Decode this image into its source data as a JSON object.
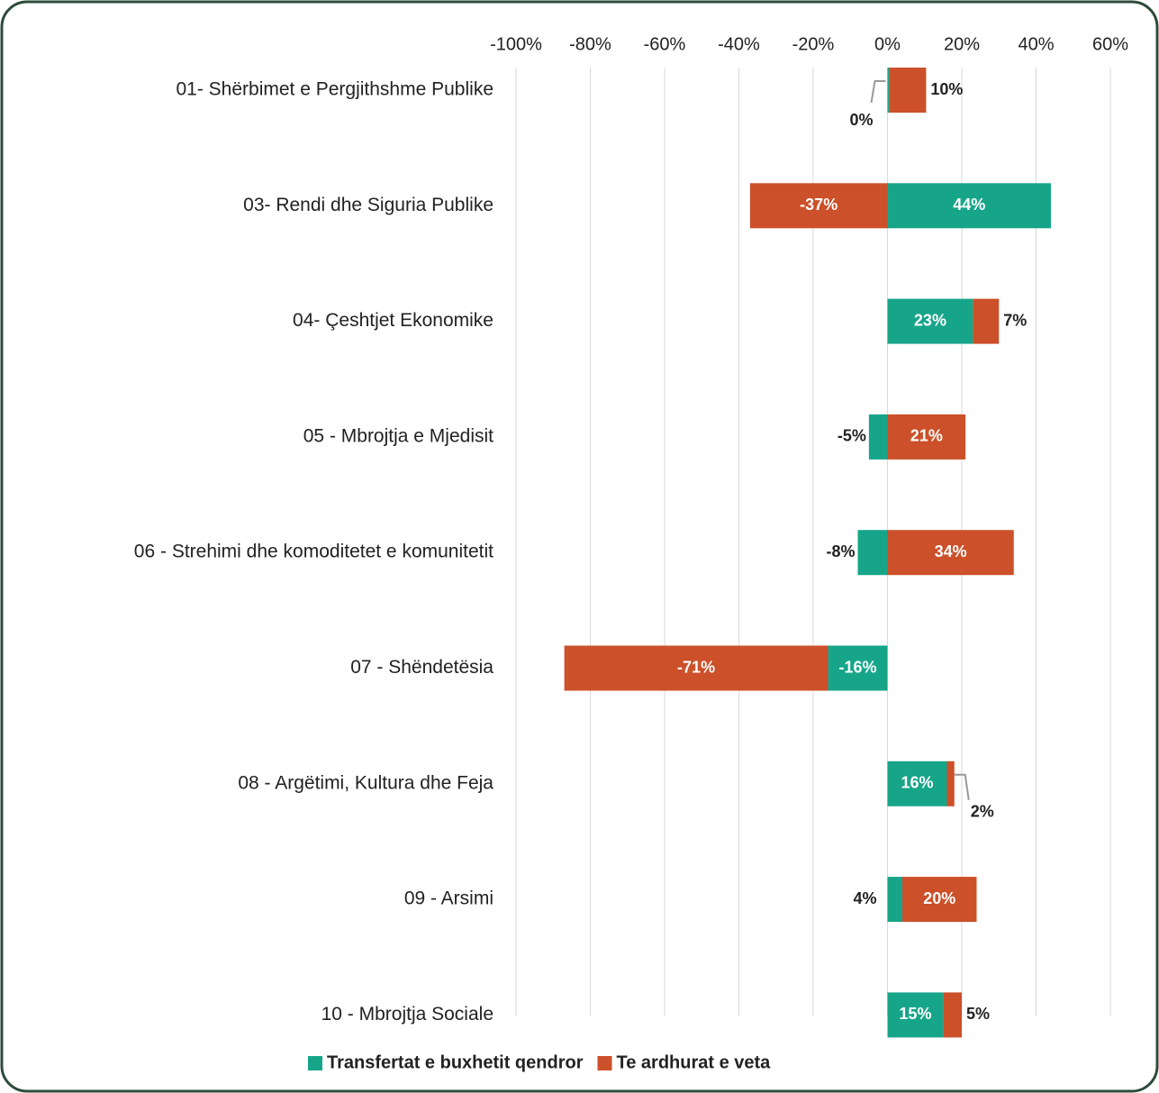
{
  "chart_data": {
    "type": "stacked-barh",
    "categories": [
      "01- Shërbimet e Pergjithshme Publike",
      "03- Rendi dhe Siguria Publike",
      "04- Çeshtjet Ekonomike",
      "05 - Mbrojtja e Mjedisit",
      "06 - Strehimi dhe komoditetet e komunitetit",
      "07 - Shëndetësia",
      "08 - Argëtimi, Kultura dhe Feja",
      "09 - Arsimi",
      "10 - Mbrojtja Sociale"
    ],
    "series": [
      {
        "name": "Transfertat e buxhetit qendror",
        "color": "#17a58a",
        "values": [
          0.4,
          44,
          23,
          -5,
          -8,
          -16,
          16,
          4,
          15
        ],
        "value_labels": [
          "0%",
          "44%",
          "23%",
          "-5%",
          "-8%",
          "-16%",
          "16%",
          "4%",
          "15%"
        ]
      },
      {
        "name": "Te ardhurat e veta",
        "color": "#cc5029",
        "values": [
          10,
          -37,
          7,
          21,
          34,
          -71,
          2,
          20,
          5
        ],
        "value_labels": [
          "10%",
          "-37%",
          "7%",
          "21%",
          "34%",
          "-71%",
          "2%",
          "20%",
          "5%"
        ]
      }
    ],
    "xlim": [
      -100,
      60
    ],
    "xticks": [
      {
        "value": -100,
        "label": "-100%"
      },
      {
        "value": -80,
        "label": "-80%"
      },
      {
        "value": -60,
        "label": "-60%"
      },
      {
        "value": -40,
        "label": "-40%"
      },
      {
        "value": -20,
        "label": "-20%"
      },
      {
        "value": 0,
        "label": "0%"
      },
      {
        "value": 20,
        "label": "20%"
      },
      {
        "value": 40,
        "label": "40%"
      },
      {
        "value": 60,
        "label": "60%"
      }
    ],
    "grid": true,
    "legend": "bottom"
  }
}
